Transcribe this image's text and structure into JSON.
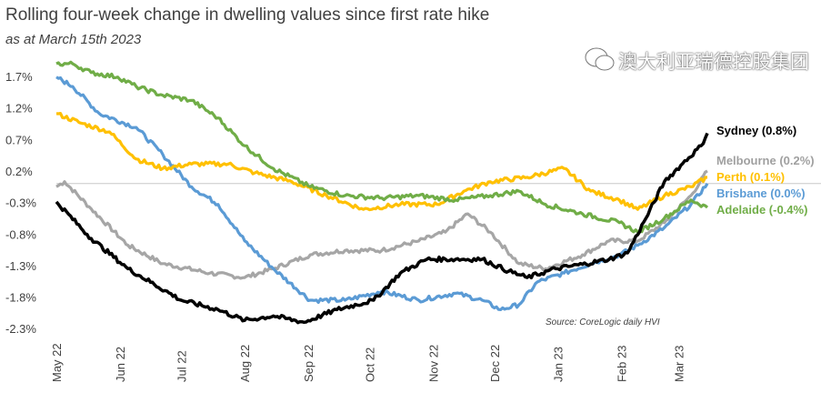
{
  "chart_data": {
    "type": "line",
    "title": "Rolling four-week change in dwelling values since first rate hike",
    "subtitle": "as at March  15th 2023",
    "source": "Source:  CoreLogic daily HVI",
    "xlabel": "",
    "ylabel": "",
    "x_unit": "days since 1 May 2022",
    "xlim": [
      0,
      318
    ],
    "ylim": [
      -2.3,
      1.9
    ],
    "yticks": [
      "1.7%",
      "1.2%",
      "0.7%",
      "0.2%",
      "-0.3%",
      "-0.8%",
      "-1.3%",
      "-1.8%",
      "-2.3%"
    ],
    "ytick_values": [
      1.7,
      1.2,
      0.7,
      0.2,
      -0.3,
      -0.8,
      -1.3,
      -1.8,
      -2.3
    ],
    "xticks": [
      "May 22",
      "Jun 22",
      "Jul 22",
      "Aug 22",
      "Sep 22",
      "Oct 22",
      "Nov 22",
      "Dec 22",
      "Jan 23",
      "Feb 23",
      "Mar 23"
    ],
    "xtick_values": [
      0,
      31,
      61,
      92,
      123,
      153,
      184,
      214,
      245,
      276,
      304
    ],
    "reference_line": 0,
    "grid": false,
    "legend": "right, end-of-line labels",
    "series": [
      {
        "name": "Sydney",
        "label": "Sydney (0.8%)",
        "color": "#000000",
        "points": [
          [
            0,
            -0.29
          ],
          [
            17,
            -0.87
          ],
          [
            35,
            -1.35
          ],
          [
            61,
            -1.85
          ],
          [
            79,
            -2.0
          ],
          [
            92,
            -2.17
          ],
          [
            106,
            -2.1
          ],
          [
            121,
            -2.2
          ],
          [
            137,
            -2.0
          ],
          [
            155,
            -1.85
          ],
          [
            168,
            -1.42
          ],
          [
            181,
            -1.2
          ],
          [
            195,
            -1.2
          ],
          [
            208,
            -1.2
          ],
          [
            221,
            -1.39
          ],
          [
            230,
            -1.49
          ],
          [
            244,
            -1.35
          ],
          [
            257,
            -1.28
          ],
          [
            270,
            -1.2
          ],
          [
            279,
            -1.1
          ],
          [
            288,
            -0.55
          ],
          [
            297,
            0.03
          ],
          [
            306,
            0.32
          ],
          [
            315,
            0.6
          ],
          [
            318,
            0.8
          ]
        ]
      },
      {
        "name": "Melbourne",
        "label": "Melbourne (0.2%)",
        "color": "#a6a6a6",
        "points": [
          [
            0,
            -0.05
          ],
          [
            4,
            0.03
          ],
          [
            17,
            -0.4
          ],
          [
            35,
            -0.98
          ],
          [
            52,
            -1.27
          ],
          [
            75,
            -1.42
          ],
          [
            92,
            -1.49
          ],
          [
            106,
            -1.35
          ],
          [
            124,
            -1.13
          ],
          [
            141,
            -1.06
          ],
          [
            159,
            -1.06
          ],
          [
            177,
            -0.91
          ],
          [
            190,
            -0.77
          ],
          [
            201,
            -0.48
          ],
          [
            212,
            -0.77
          ],
          [
            226,
            -1.27
          ],
          [
            239,
            -1.35
          ],
          [
            257,
            -1.13
          ],
          [
            270,
            -0.91
          ],
          [
            284,
            -0.91
          ],
          [
            297,
            -0.62
          ],
          [
            310,
            -0.19
          ],
          [
            318,
            0.2
          ]
        ]
      },
      {
        "name": "Perth",
        "label": "Perth (0.1%)",
        "color": "#ffc000",
        "points": [
          [
            0,
            1.11
          ],
          [
            12,
            0.96
          ],
          [
            26,
            0.82
          ],
          [
            39,
            0.39
          ],
          [
            52,
            0.24
          ],
          [
            66,
            0.31
          ],
          [
            84,
            0.31
          ],
          [
            97,
            0.17
          ],
          [
            115,
            0.03
          ],
          [
            132,
            -0.19
          ],
          [
            150,
            -0.41
          ],
          [
            168,
            -0.33
          ],
          [
            186,
            -0.33
          ],
          [
            199,
            -0.12
          ],
          [
            212,
            0.03
          ],
          [
            230,
            0.1
          ],
          [
            248,
            0.24
          ],
          [
            261,
            -0.12
          ],
          [
            275,
            -0.26
          ],
          [
            284,
            -0.41
          ],
          [
            297,
            -0.19
          ],
          [
            310,
            -0.05
          ],
          [
            318,
            0.1
          ]
        ]
      },
      {
        "name": "Brisbane",
        "label": "Brisbane (0.0%)",
        "color": "#5b9bd5",
        "points": [
          [
            0,
            1.69
          ],
          [
            8,
            1.54
          ],
          [
            21,
            1.11
          ],
          [
            39,
            0.89
          ],
          [
            52,
            0.46
          ],
          [
            66,
            -0.05
          ],
          [
            79,
            -0.33
          ],
          [
            92,
            -0.91
          ],
          [
            106,
            -1.35
          ],
          [
            124,
            -1.85
          ],
          [
            141,
            -1.85
          ],
          [
            159,
            -1.71
          ],
          [
            177,
            -1.85
          ],
          [
            195,
            -1.74
          ],
          [
            208,
            -1.85
          ],
          [
            217,
            -2.0
          ],
          [
            226,
            -1.92
          ],
          [
            235,
            -1.56
          ],
          [
            248,
            -1.42
          ],
          [
            261,
            -1.27
          ],
          [
            275,
            -1.13
          ],
          [
            284,
            -0.98
          ],
          [
            297,
            -0.7
          ],
          [
            310,
            -0.33
          ],
          [
            318,
            0.0
          ]
        ]
      },
      {
        "name": "Adelaide",
        "label": "Adelaide (-0.4%)",
        "color": "#70ad47",
        "points": [
          [
            0,
            1.9
          ],
          [
            8,
            1.9
          ],
          [
            17,
            1.76
          ],
          [
            30,
            1.69
          ],
          [
            39,
            1.54
          ],
          [
            52,
            1.4
          ],
          [
            66,
            1.32
          ],
          [
            79,
            1.04
          ],
          [
            92,
            0.6
          ],
          [
            106,
            0.24
          ],
          [
            124,
            -0.05
          ],
          [
            141,
            -0.19
          ],
          [
            159,
            -0.23
          ],
          [
            177,
            -0.19
          ],
          [
            195,
            -0.26
          ],
          [
            212,
            -0.19
          ],
          [
            226,
            -0.12
          ],
          [
            239,
            -0.33
          ],
          [
            257,
            -0.48
          ],
          [
            275,
            -0.62
          ],
          [
            284,
            -0.77
          ],
          [
            297,
            -0.55
          ],
          [
            310,
            -0.26
          ],
          [
            318,
            -0.38
          ]
        ]
      }
    ]
  },
  "watermark": "澳大利亚瑞德控股集团"
}
